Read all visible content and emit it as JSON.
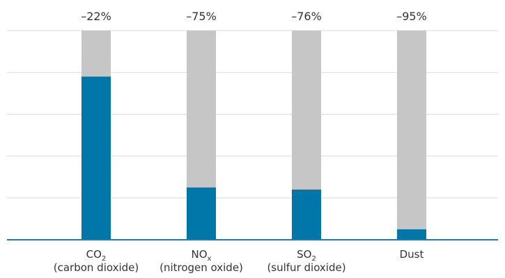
{
  "chart_data": {
    "type": "bar",
    "stacked": true,
    "categories": [
      {
        "name": "CO",
        "sub": "2",
        "description": "(carbon dioxide)"
      },
      {
        "name": "NO",
        "sub": "x",
        "description": "(nitrogen oxide)"
      },
      {
        "name": "SO",
        "sub": "2",
        "description": "(sulfur dioxide)"
      },
      {
        "name": "Dust",
        "sub": "",
        "description": ""
      }
    ],
    "reduction_labels": [
      "–22%",
      "–75%",
      "–76%",
      "–95%"
    ],
    "remaining_share": [
      0.78,
      0.25,
      0.24,
      0.05
    ],
    "ylim": [
      0,
      1
    ],
    "grid": true,
    "colors": {
      "remaining": "#0077a8",
      "reduced": "#c6c6c6",
      "gridline": "#dadada",
      "axis": "#1a7fae"
    }
  }
}
